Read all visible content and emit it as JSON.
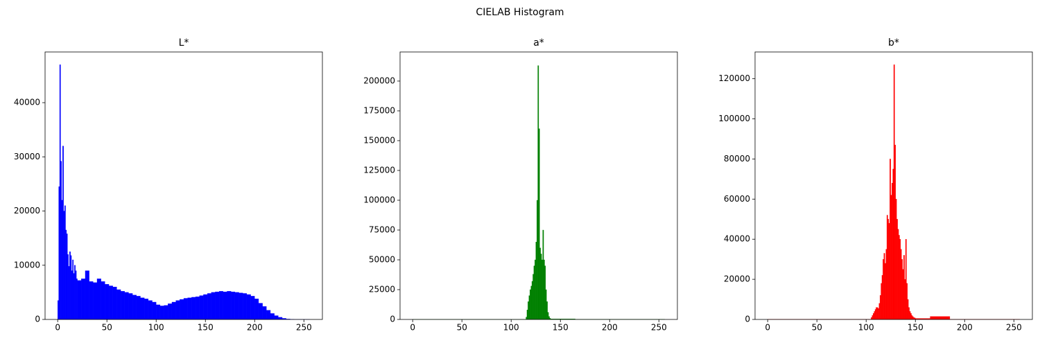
{
  "title": "CIELAB Histogram",
  "chart_data": [
    {
      "type": "histogram",
      "title": "L*",
      "color": "#0000ff",
      "bins": [
        0,
        1,
        2,
        3,
        4,
        5,
        6,
        7,
        8,
        9,
        10,
        11,
        12,
        13,
        14,
        15,
        16,
        17,
        18,
        19,
        20,
        24,
        28,
        32,
        36,
        40,
        44,
        48,
        52,
        56,
        60,
        64,
        68,
        72,
        76,
        80,
        84,
        88,
        92,
        96,
        100,
        104,
        108,
        112,
        116,
        120,
        124,
        128,
        132,
        136,
        140,
        144,
        148,
        152,
        156,
        160,
        164,
        168,
        172,
        176,
        180,
        184,
        188,
        192,
        196,
        200,
        204,
        208,
        212,
        216,
        220,
        224,
        228,
        232,
        236,
        240,
        256
      ],
      "counts": [
        3500,
        24500,
        47000,
        29200,
        22000,
        32000,
        20000,
        21000,
        16500,
        15800,
        12000,
        9800,
        12500,
        11800,
        9000,
        11000,
        8500,
        10000,
        9000,
        7500,
        7200,
        7500,
        9000,
        7000,
        6800,
        7500,
        7000,
        6500,
        6200,
        6000,
        5500,
        5200,
        5000,
        4800,
        4500,
        4300,
        4000,
        3800,
        3500,
        3200,
        2700,
        2500,
        2600,
        2900,
        3200,
        3500,
        3700,
        3900,
        4000,
        4100,
        4200,
        4400,
        4600,
        4800,
        5000,
        5100,
        5200,
        5100,
        5200,
        5100,
        5000,
        4900,
        4800,
        4600,
        4300,
        3800,
        3000,
        2400,
        1700,
        1100,
        700,
        400,
        200,
        80,
        30,
        5
      ],
      "xlim": [
        -12.8,
        268.8
      ],
      "xticks": [
        0,
        50,
        100,
        150,
        200,
        250
      ],
      "ylim": [
        0,
        49350
      ],
      "yticks": [
        0,
        10000,
        20000,
        30000,
        40000
      ]
    },
    {
      "type": "histogram",
      "title": "a*",
      "color": "#008000",
      "bins": [
        0,
        115,
        116,
        117,
        118,
        119,
        120,
        121,
        122,
        123,
        124,
        125,
        126,
        127,
        128,
        129,
        130,
        131,
        132,
        133,
        134,
        135,
        136,
        137,
        138,
        139,
        140,
        165,
        256
      ],
      "counts": [
        50,
        2000,
        8000,
        15000,
        20000,
        25000,
        28000,
        32000,
        38000,
        45000,
        50000,
        65000,
        100000,
        213000,
        160000,
        60000,
        55000,
        50000,
        75000,
        50000,
        45000,
        25000,
        15000,
        6000,
        2500,
        1000,
        500,
        100
      ],
      "xlim": [
        -12.8,
        268.8
      ],
      "xticks": [
        0,
        50,
        100,
        150,
        200,
        250
      ],
      "ylim": [
        0,
        224400
      ],
      "yticks": [
        0,
        25000,
        50000,
        75000,
        100000,
        125000,
        150000,
        175000,
        200000
      ]
    },
    {
      "type": "histogram",
      "title": "b*",
      "color": "#ff0000",
      "bins": [
        0,
        105,
        106,
        107,
        108,
        109,
        110,
        111,
        112,
        113,
        114,
        115,
        116,
        117,
        118,
        119,
        120,
        121,
        122,
        123,
        124,
        125,
        126,
        127,
        128,
        129,
        130,
        131,
        132,
        133,
        134,
        135,
        136,
        137,
        138,
        139,
        140,
        141,
        142,
        143,
        144,
        145,
        146,
        147,
        148,
        149,
        150,
        165,
        185,
        256
      ],
      "counts": [
        100,
        1000,
        2000,
        3000,
        4000,
        5000,
        6000,
        6000,
        5500,
        8000,
        12000,
        18000,
        22000,
        30000,
        33000,
        28000,
        35000,
        52000,
        50000,
        48000,
        80000,
        62000,
        68000,
        75000,
        127000,
        87000,
        60000,
        50000,
        45000,
        42000,
        40000,
        35000,
        30000,
        25000,
        32000,
        20000,
        40000,
        18000,
        10000,
        6000,
        4000,
        3000,
        2000,
        1500,
        1000,
        800,
        500,
        1500,
        100
      ],
      "xlim": [
        -12.8,
        268.8
      ],
      "xticks": [
        0,
        50,
        100,
        150,
        200,
        250
      ],
      "ylim": [
        0,
        133350
      ],
      "yticks": [
        0,
        20000,
        40000,
        60000,
        80000,
        100000,
        120000
      ]
    }
  ]
}
